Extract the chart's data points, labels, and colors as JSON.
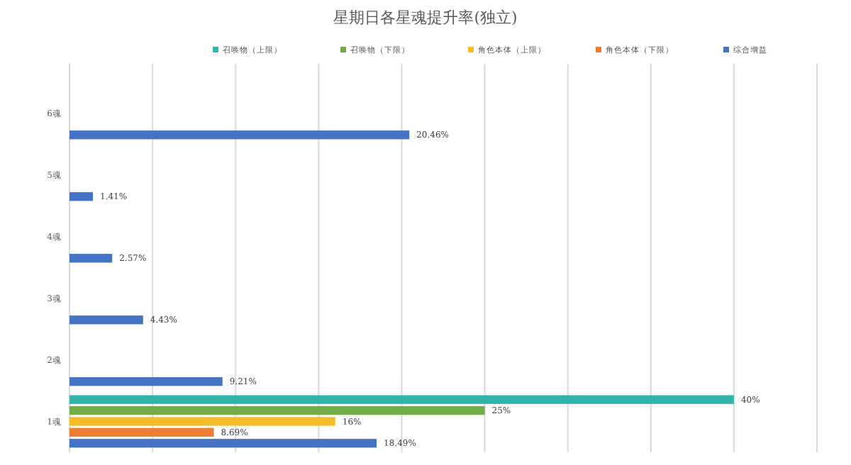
{
  "chart_data": {
    "type": "bar",
    "orientation": "horizontal",
    "title": "星期日各星魂提升率(独立)",
    "categories": [
      "6魂",
      "5魂",
      "4魂",
      "3魂",
      "2魂",
      "1魂"
    ],
    "series": [
      {
        "name": "召唤物（上限）",
        "color": "#2fb5ac",
        "values": [
          null,
          null,
          null,
          null,
          null,
          40
        ],
        "value_labels": [
          null,
          null,
          null,
          null,
          null,
          "40%"
        ]
      },
      {
        "name": "召唤物（下限）",
        "color": "#70ad47",
        "values": [
          null,
          null,
          null,
          null,
          null,
          25
        ],
        "value_labels": [
          null,
          null,
          null,
          null,
          null,
          "25%"
        ]
      },
      {
        "name": "角色本体（上限）",
        "color": "#f2bd2a",
        "values": [
          null,
          null,
          null,
          null,
          null,
          16
        ],
        "value_labels": [
          null,
          null,
          null,
          null,
          null,
          "16%"
        ]
      },
      {
        "name": "角色本体（下限）",
        "color": "#ed7d31",
        "values": [
          null,
          null,
          null,
          null,
          null,
          8.69
        ],
        "value_labels": [
          null,
          null,
          null,
          null,
          null,
          "8.69%"
        ]
      },
      {
        "name": "综合增益",
        "color": "#4472c4",
        "values": [
          20.46,
          1.41,
          2.57,
          4.43,
          9.21,
          18.49
        ],
        "value_labels": [
          "20.46%",
          "1.41%",
          "2.57%",
          "4.43%",
          "9.21%",
          "18.49%"
        ]
      }
    ],
    "xlim": [
      0,
      45
    ],
    "xticks": [
      {
        "value": 0,
        "label": null
      },
      {
        "value": 5,
        "label": null
      },
      {
        "value": 10,
        "label": null
      },
      {
        "value": 15,
        "label": null
      },
      {
        "value": 20,
        "label": null
      },
      {
        "value": 25,
        "label": null
      },
      {
        "value": 30,
        "label": null
      },
      {
        "value": 35,
        "label": null
      },
      {
        "value": 40,
        "label": null
      },
      {
        "value": 45,
        "label": null
      }
    ],
    "tick_labels": "y",
    "grid": "x",
    "legend": "top"
  }
}
